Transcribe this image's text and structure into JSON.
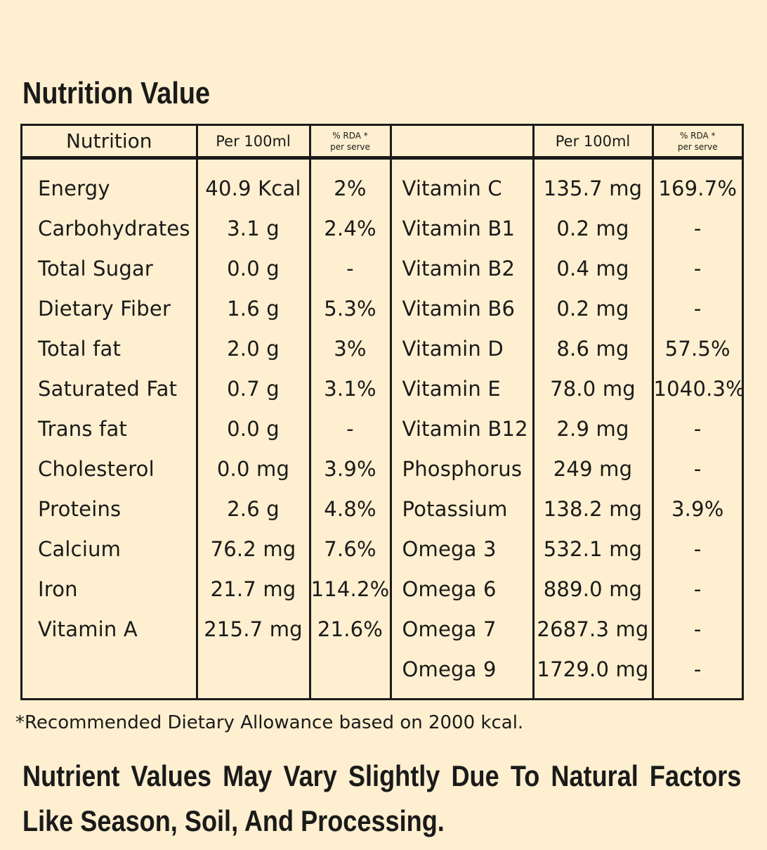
{
  "title": "Nutrition Value",
  "headers": {
    "nutrition": "Nutrition",
    "per100_left": "Per 100ml",
    "rda_left_line1": "% RDA *",
    "rda_left_line2": "per serve",
    "blank": "",
    "per100_right": "Per 100ml",
    "rda_right_line1": "% RDA *",
    "rda_right_line2": "per serve"
  },
  "rows": [
    {
      "n1": "Energy",
      "v1": "40.9 Kcal",
      "r1": "2%",
      "n2": "Vitamin C",
      "v2": "135.7 mg",
      "r2": "169.7%"
    },
    {
      "n1": "Carbohydrates",
      "v1": "3.1 g",
      "r1": "2.4%",
      "n2": "Vitamin B1",
      "v2": "0.2 mg",
      "r2": "-"
    },
    {
      "n1": "Total Sugar",
      "v1": "0.0 g",
      "r1": "-",
      "n2": "Vitamin B2",
      "v2": "0.4 mg",
      "r2": "-"
    },
    {
      "n1": "Dietary Fiber",
      "v1": "1.6 g",
      "r1": "5.3%",
      "n2": "Vitamin B6",
      "v2": "0.2 mg",
      "r2": "-"
    },
    {
      "n1": "Total fat",
      "v1": "2.0 g",
      "r1": "3%",
      "n2": "Vitamin D",
      "v2": "8.6 mg",
      "r2": "57.5%"
    },
    {
      "n1": "Saturated Fat",
      "v1": "0.7 g",
      "r1": "3.1%",
      "n2": "Vitamin E",
      "v2": "78.0 mg",
      "r2": "1040.3%"
    },
    {
      "n1": "Trans fat",
      "v1": "0.0 g",
      "r1": "-",
      "n2": "Vitamin B12",
      "v2": "2.9 mg",
      "r2": "-"
    },
    {
      "n1": "Cholesterol",
      "v1": "0.0 mg",
      "r1": "3.9%",
      "n2": "Phosphorus",
      "v2": "249 mg",
      "r2": "-"
    },
    {
      "n1": "Proteins",
      "v1": "2.6 g",
      "r1": "4.8%",
      "n2": "Potassium",
      "v2": "138.2 mg",
      "r2": "3.9%"
    },
    {
      "n1": "Calcium",
      "v1": "76.2 mg",
      "r1": "7.6%",
      "n2": "Omega 3",
      "v2": "532.1 mg",
      "r2": "-"
    },
    {
      "n1": "Iron",
      "v1": "21.7 mg",
      "r1": "114.2%",
      "n2": "Omega 6",
      "v2": "889.0 mg",
      "r2": "-"
    },
    {
      "n1": "Vitamin A",
      "v1": "215.7 mg",
      "r1": "21.6%",
      "n2": "Omega 7",
      "v2": "2687.3 mg",
      "r2": "-"
    },
    {
      "n1": "",
      "v1": "",
      "r1": "",
      "n2": "Omega 9",
      "v2": "1729.0 mg",
      "r2": "-"
    }
  ],
  "footnote": "*Recommended Dietary Allowance based on 2000 kcal.",
  "disclaimer": "Nutrient Values May Vary Slightly Due To Natural Factors Like Season, Soil, And Processing."
}
